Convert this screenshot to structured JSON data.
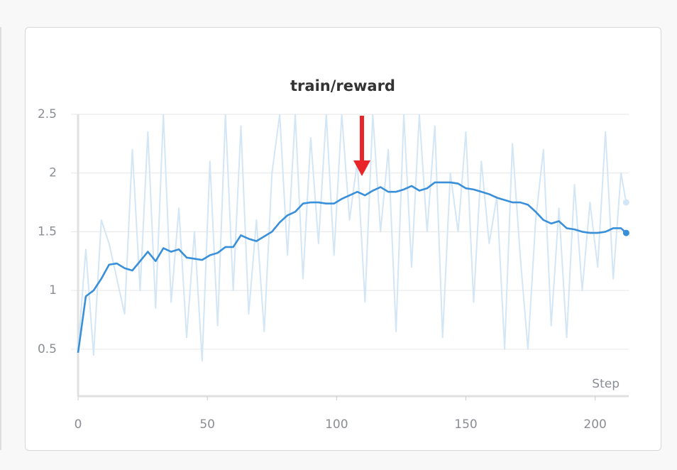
{
  "chart_data": {
    "type": "line",
    "title": "train/reward",
    "xlabel": "Step",
    "x": [
      0,
      3,
      6,
      9,
      12,
      15,
      18,
      21,
      24,
      27,
      30,
      33,
      36,
      39,
      42,
      45,
      48,
      51,
      54,
      57,
      60,
      63,
      66,
      69,
      72,
      75,
      78,
      81,
      84,
      87,
      90,
      93,
      96,
      99,
      102,
      105,
      108,
      111,
      114,
      117,
      120,
      123,
      126,
      129,
      132,
      135,
      138,
      141,
      144,
      147,
      150,
      153,
      156,
      159,
      162,
      165,
      168,
      171,
      174,
      177,
      180,
      183,
      186,
      189,
      192,
      195,
      198,
      201,
      204,
      207,
      210,
      212
    ],
    "series": [
      {
        "color": "#d3e6f6",
        "values": [
          0.5,
          1.35,
          0.45,
          1.6,
          1.4,
          1.1,
          0.8,
          2.2,
          1.0,
          2.35,
          0.85,
          2.5,
          0.9,
          1.7,
          0.6,
          1.5,
          0.4,
          2.1,
          0.7,
          2.5,
          1.0,
          2.4,
          0.8,
          1.6,
          0.65,
          2.0,
          2.5,
          1.3,
          2.5,
          1.1,
          2.3,
          1.4,
          2.5,
          1.3,
          2.5,
          1.6,
          2.1,
          0.9,
          2.5,
          1.5,
          2.2,
          0.65,
          2.5,
          1.2,
          2.5,
          1.5,
          2.4,
          0.6,
          2.0,
          1.5,
          2.35,
          0.9,
          2.1,
          1.4,
          1.8,
          0.5,
          2.25,
          1.3,
          0.5,
          1.6,
          2.2,
          0.7,
          1.7,
          0.6,
          1.9,
          1.0,
          1.75,
          1.2,
          2.35,
          1.1,
          2.0,
          1.75
        ]
      },
      {
        "color": "#3a8fd9",
        "values": [
          0.47,
          0.95,
          1.0,
          1.1,
          1.22,
          1.23,
          1.19,
          1.17,
          1.25,
          1.33,
          1.25,
          1.36,
          1.33,
          1.35,
          1.28,
          1.27,
          1.26,
          1.3,
          1.32,
          1.37,
          1.37,
          1.47,
          1.44,
          1.42,
          1.46,
          1.5,
          1.58,
          1.64,
          1.67,
          1.74,
          1.75,
          1.75,
          1.74,
          1.74,
          1.78,
          1.81,
          1.84,
          1.81,
          1.85,
          1.88,
          1.84,
          1.84,
          1.86,
          1.89,
          1.85,
          1.87,
          1.92,
          1.92,
          1.92,
          1.91,
          1.87,
          1.86,
          1.84,
          1.82,
          1.79,
          1.77,
          1.75,
          1.75,
          1.73,
          1.67,
          1.6,
          1.57,
          1.59,
          1.53,
          1.52,
          1.5,
          1.49,
          1.49,
          1.5,
          1.53,
          1.53,
          1.49
        ]
      }
    ],
    "xlim": [
      0,
      213
    ],
    "ylim": [
      0.1,
      2.5
    ],
    "xticks": [
      0,
      50,
      100,
      150,
      200
    ],
    "yticks": [
      0.5,
      1,
      1.5,
      2,
      2.5
    ],
    "grid": true
  }
}
